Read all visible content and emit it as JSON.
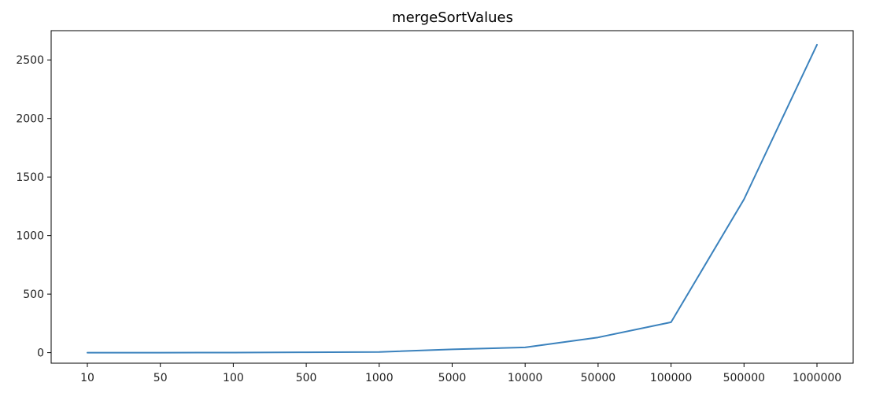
{
  "chart_data": {
    "type": "line",
    "title": "mergeSortValues",
    "xlabel": "",
    "ylabel": "",
    "categories": [
      "10",
      "50",
      "100",
      "500",
      "1000",
      "5000",
      "10000",
      "50000",
      "100000",
      "500000",
      "1000000"
    ],
    "series": [
      {
        "values": [
          0,
          0,
          0.5,
          3,
          6,
          28,
          45,
          130,
          260,
          1310,
          2630
        ],
        "color": "#3b82bd"
      }
    ],
    "ylim": [
      -90,
      2750
    ],
    "yticks": [
      0,
      500,
      1000,
      1500,
      2000,
      2500
    ],
    "grid": false,
    "legend": "none"
  }
}
